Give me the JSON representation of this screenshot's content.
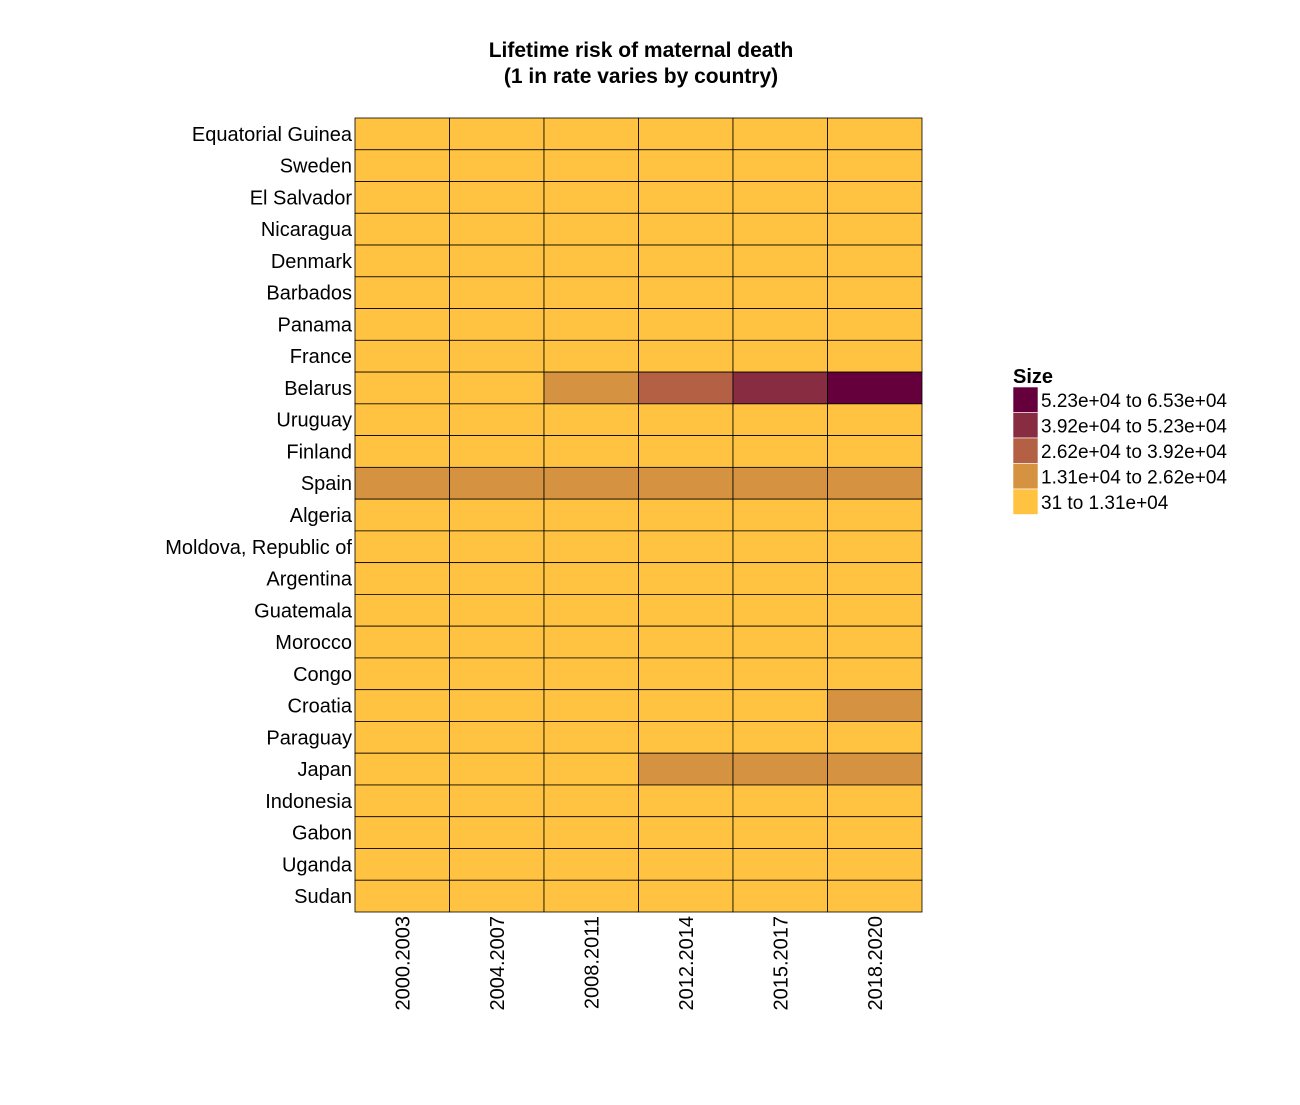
{
  "chart_data": {
    "type": "heatmap",
    "title": "Lifetime risk of maternal death\n(1 in rate varies by country)",
    "xlabel": "",
    "ylabel": "",
    "columns": [
      "2000.2003",
      "2004.2007",
      "2008.2011",
      "2012.2014",
      "2015.2017",
      "2018.2020"
    ],
    "rows": [
      "Equatorial Guinea",
      "Sweden",
      "El Salvador",
      "Nicaragua",
      "Denmark",
      "Barbados",
      "Panama",
      "France",
      "Belarus",
      "Uruguay",
      "Finland",
      "Spain",
      "Algeria",
      "Moldova, Republic of",
      "Argentina",
      "Guatemala",
      "Morocco",
      "Congo",
      "Croatia",
      "Paraguay",
      "Japan",
      "Indonesia",
      "Gabon",
      "Uganda",
      "Sudan"
    ],
    "bin_matrix": [
      [
        0,
        0,
        0,
        0,
        0,
        0
      ],
      [
        0,
        0,
        0,
        0,
        0,
        0
      ],
      [
        0,
        0,
        0,
        0,
        0,
        0
      ],
      [
        0,
        0,
        0,
        0,
        0,
        0
      ],
      [
        0,
        0,
        0,
        0,
        0,
        0
      ],
      [
        0,
        0,
        0,
        0,
        0,
        0
      ],
      [
        0,
        0,
        0,
        0,
        0,
        0
      ],
      [
        0,
        0,
        0,
        0,
        0,
        0
      ],
      [
        0,
        0,
        1,
        2,
        3,
        4
      ],
      [
        0,
        0,
        0,
        0,
        0,
        0
      ],
      [
        0,
        0,
        0,
        0,
        0,
        0
      ],
      [
        1,
        1,
        1,
        1,
        1,
        1
      ],
      [
        0,
        0,
        0,
        0,
        0,
        0
      ],
      [
        0,
        0,
        0,
        0,
        0,
        0
      ],
      [
        0,
        0,
        0,
        0,
        0,
        0
      ],
      [
        0,
        0,
        0,
        0,
        0,
        0
      ],
      [
        0,
        0,
        0,
        0,
        0,
        0
      ],
      [
        0,
        0,
        0,
        0,
        0,
        0
      ],
      [
        0,
        0,
        0,
        0,
        0,
        1
      ],
      [
        0,
        0,
        0,
        0,
        0,
        0
      ],
      [
        0,
        0,
        0,
        1,
        1,
        1
      ],
      [
        0,
        0,
        0,
        0,
        0,
        0
      ],
      [
        0,
        0,
        0,
        0,
        0,
        0
      ],
      [
        0,
        0,
        0,
        0,
        0,
        0
      ],
      [
        0,
        0,
        0,
        0,
        0,
        0
      ]
    ],
    "legend": {
      "title": "Size",
      "position": "right",
      "bins": [
        {
          "label": "31 to 1.31e+04",
          "color": "#FFC341"
        },
        {
          "label": "1.31e+04 to 2.62e+04",
          "color": "#D59240"
        },
        {
          "label": "2.62e+04 to 3.92e+04",
          "color": "#B36045"
        },
        {
          "label": "3.92e+04 to 5.23e+04",
          "color": "#882D41"
        },
        {
          "label": "5.23e+04 to 6.53e+04",
          "color": "#66003C"
        }
      ]
    },
    "grid": false
  }
}
